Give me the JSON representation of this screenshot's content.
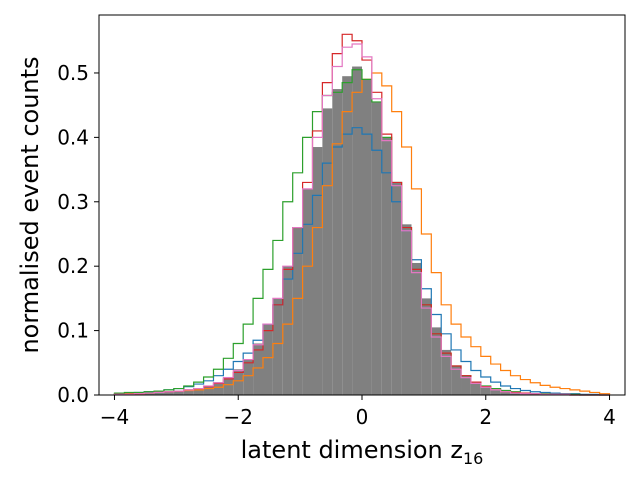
{
  "chart_data": {
    "type": "histogram",
    "xlabel": "latent dimension z",
    "xlabel_subscript": "16",
    "ylabel": "normalised event counts",
    "xlim": [
      -4.25,
      4.25
    ],
    "ylim": [
      0,
      0.59
    ],
    "xticks": [
      -4,
      -2,
      0,
      2,
      4
    ],
    "xtick_labels": [
      "−4",
      "−2",
      "0",
      "2",
      "4"
    ],
    "yticks": [
      0.0,
      0.1,
      0.2,
      0.3,
      0.4,
      0.5
    ],
    "ytick_labels": [
      "0.0",
      "0.1",
      "0.2",
      "0.3",
      "0.4",
      "0.5"
    ],
    "grid": false,
    "legend": false,
    "bins": {
      "start": -4,
      "end": 4,
      "count": 50
    },
    "filled_series": {
      "color": "#808080",
      "values": [
        0.001,
        0.002,
        0.002,
        0.003,
        0.004,
        0.005,
        0.006,
        0.008,
        0.01,
        0.014,
        0.02,
        0.028,
        0.04,
        0.055,
        0.08,
        0.11,
        0.15,
        0.2,
        0.26,
        0.32,
        0.385,
        0.445,
        0.475,
        0.495,
        0.51,
        0.49,
        0.455,
        0.4,
        0.33,
        0.265,
        0.205,
        0.15,
        0.105,
        0.07,
        0.045,
        0.03,
        0.02,
        0.013,
        0.008,
        0.005,
        0.004,
        0.003,
        0.002,
        0.001,
        0.001,
        0.001,
        0.001,
        0.0,
        0.0,
        0.0
      ]
    },
    "series": [
      {
        "color": "#1f77b4",
        "values": [
          0.002,
          0.003,
          0.004,
          0.005,
          0.006,
          0.008,
          0.01,
          0.013,
          0.017,
          0.022,
          0.03,
          0.04,
          0.052,
          0.065,
          0.085,
          0.11,
          0.14,
          0.18,
          0.22,
          0.265,
          0.31,
          0.36,
          0.385,
          0.405,
          0.415,
          0.405,
          0.38,
          0.345,
          0.3,
          0.255,
          0.21,
          0.165,
          0.125,
          0.095,
          0.07,
          0.052,
          0.038,
          0.028,
          0.02,
          0.014,
          0.01,
          0.007,
          0.005,
          0.004,
          0.003,
          0.002,
          0.002,
          0.001,
          0.001,
          0.0
        ]
      },
      {
        "color": "#ff7f0e",
        "values": [
          0.001,
          0.002,
          0.002,
          0.003,
          0.004,
          0.005,
          0.006,
          0.007,
          0.008,
          0.01,
          0.012,
          0.016,
          0.022,
          0.03,
          0.042,
          0.058,
          0.08,
          0.11,
          0.15,
          0.2,
          0.26,
          0.325,
          0.39,
          0.44,
          0.47,
          0.49,
          0.5,
          0.48,
          0.44,
          0.385,
          0.32,
          0.25,
          0.19,
          0.14,
          0.11,
          0.09,
          0.075,
          0.06,
          0.048,
          0.038,
          0.03,
          0.024,
          0.019,
          0.015,
          0.012,
          0.01,
          0.008,
          0.006,
          0.004,
          0.002
        ]
      },
      {
        "color": "#2ca02c",
        "values": [
          0.003,
          0.004,
          0.004,
          0.005,
          0.006,
          0.008,
          0.01,
          0.014,
          0.02,
          0.028,
          0.04,
          0.057,
          0.08,
          0.11,
          0.15,
          0.195,
          0.24,
          0.3,
          0.345,
          0.4,
          0.44,
          0.465,
          0.47,
          0.485,
          0.505,
          0.49,
          0.455,
          0.4,
          0.33,
          0.26,
          0.195,
          0.14,
          0.095,
          0.065,
          0.045,
          0.03,
          0.02,
          0.014,
          0.01,
          0.007,
          0.005,
          0.003,
          0.002,
          0.002,
          0.001,
          0.001,
          0.001,
          0.0,
          0.0,
          0.0
        ]
      },
      {
        "color": "#d62728",
        "values": [
          0.001,
          0.001,
          0.002,
          0.003,
          0.004,
          0.005,
          0.006,
          0.008,
          0.01,
          0.013,
          0.018,
          0.025,
          0.035,
          0.05,
          0.07,
          0.1,
          0.14,
          0.195,
          0.26,
          0.33,
          0.41,
          0.485,
          0.53,
          0.56,
          0.55,
          0.52,
          0.47,
          0.405,
          0.33,
          0.26,
          0.195,
          0.14,
          0.095,
          0.065,
          0.045,
          0.03,
          0.02,
          0.013,
          0.008,
          0.005,
          0.004,
          0.003,
          0.002,
          0.001,
          0.001,
          0.001,
          0.0,
          0.0,
          0.0,
          0.0
        ]
      },
      {
        "color": "#e377c2",
        "values": [
          0.001,
          0.001,
          0.002,
          0.003,
          0.004,
          0.005,
          0.006,
          0.008,
          0.01,
          0.014,
          0.019,
          0.027,
          0.038,
          0.055,
          0.078,
          0.11,
          0.15,
          0.2,
          0.26,
          0.32,
          0.4,
          0.465,
          0.51,
          0.54,
          0.545,
          0.525,
          0.46,
          0.395,
          0.325,
          0.255,
          0.19,
          0.135,
          0.09,
          0.06,
          0.04,
          0.027,
          0.018,
          0.012,
          0.008,
          0.005,
          0.003,
          0.002,
          0.002,
          0.001,
          0.001,
          0.001,
          0.0,
          0.0,
          0.0,
          0.0
        ]
      }
    ]
  }
}
